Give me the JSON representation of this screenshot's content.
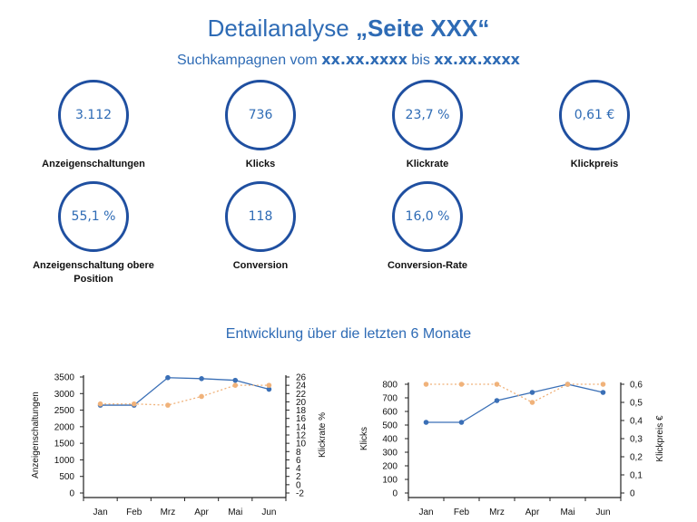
{
  "header": {
    "title_prefix": "Detailanalyse ",
    "title_strong": "„Seite XXX“",
    "subtitle_prefix": "Suchkampagnen vom ",
    "date_from": "xx.xx.xxxx",
    "subtitle_mid": " bis ",
    "date_to": "xx.xx.xxxx"
  },
  "kpis": [
    {
      "value": "3.112",
      "label": "Anzeigenschaltungen"
    },
    {
      "value": "736",
      "label": "Klicks"
    },
    {
      "value": "23,7 %",
      "label": "Klickrate"
    },
    {
      "value": "0,61 €",
      "label": "Klickpreis"
    },
    {
      "value": "55,1 %",
      "label": "Anzeigenschaltung obere Position"
    },
    {
      "value": "118",
      "label": "Conversion"
    },
    {
      "value": "16,0 %",
      "label": "Conversion-Rate"
    }
  ],
  "section_title": "Entwicklung über die letzten 6 Monate",
  "colors": {
    "primary": "#2e6bb5",
    "circle": "#1f4fa0",
    "line_blue": "#3a6fb6",
    "line_orange": "#f0b27a"
  },
  "chart_data": [
    {
      "type": "line",
      "categories": [
        "Jan",
        "Feb",
        "Mrz",
        "Apr",
        "Mai",
        "Jun"
      ],
      "ylabel": "Anzeigenschaltungen",
      "y2label": "Klickrate %",
      "ylim": [
        0,
        3500
      ],
      "y2lim": [
        -2,
        26
      ],
      "yticks": [
        0,
        500,
        1000,
        1500,
        2000,
        2500,
        3000,
        3500
      ],
      "y2ticks": [
        -2,
        0,
        2,
        4,
        6,
        8,
        10,
        12,
        14,
        16,
        18,
        20,
        22,
        24,
        26
      ],
      "series": [
        {
          "axis": "left",
          "style": "solid",
          "values": [
            2650,
            2650,
            3480,
            3450,
            3400,
            3130
          ]
        },
        {
          "axis": "right",
          "style": "dotted",
          "values": [
            19.5,
            19.5,
            19.2,
            21.3,
            24,
            24
          ]
        }
      ]
    },
    {
      "type": "line",
      "categories": [
        "Jan",
        "Feb",
        "Mrz",
        "Apr",
        "Mai",
        "Jun"
      ],
      "ylabel": "Klicks",
      "y2label": "Klickpreis €",
      "ylim": [
        0,
        800
      ],
      "y2lim": [
        0,
        0.6
      ],
      "yticks": [
        0,
        100,
        200,
        300,
        400,
        500,
        600,
        700,
        800
      ],
      "y2ticks": [
        0,
        0.1,
        0.2,
        0.3,
        0.4,
        0.5,
        0.6
      ],
      "series": [
        {
          "axis": "left",
          "style": "solid",
          "values": [
            520,
            520,
            680,
            740,
            800,
            740
          ]
        },
        {
          "axis": "right",
          "style": "dotted",
          "values": [
            0.6,
            0.6,
            0.6,
            0.5,
            0.6,
            0.6
          ]
        }
      ]
    }
  ]
}
